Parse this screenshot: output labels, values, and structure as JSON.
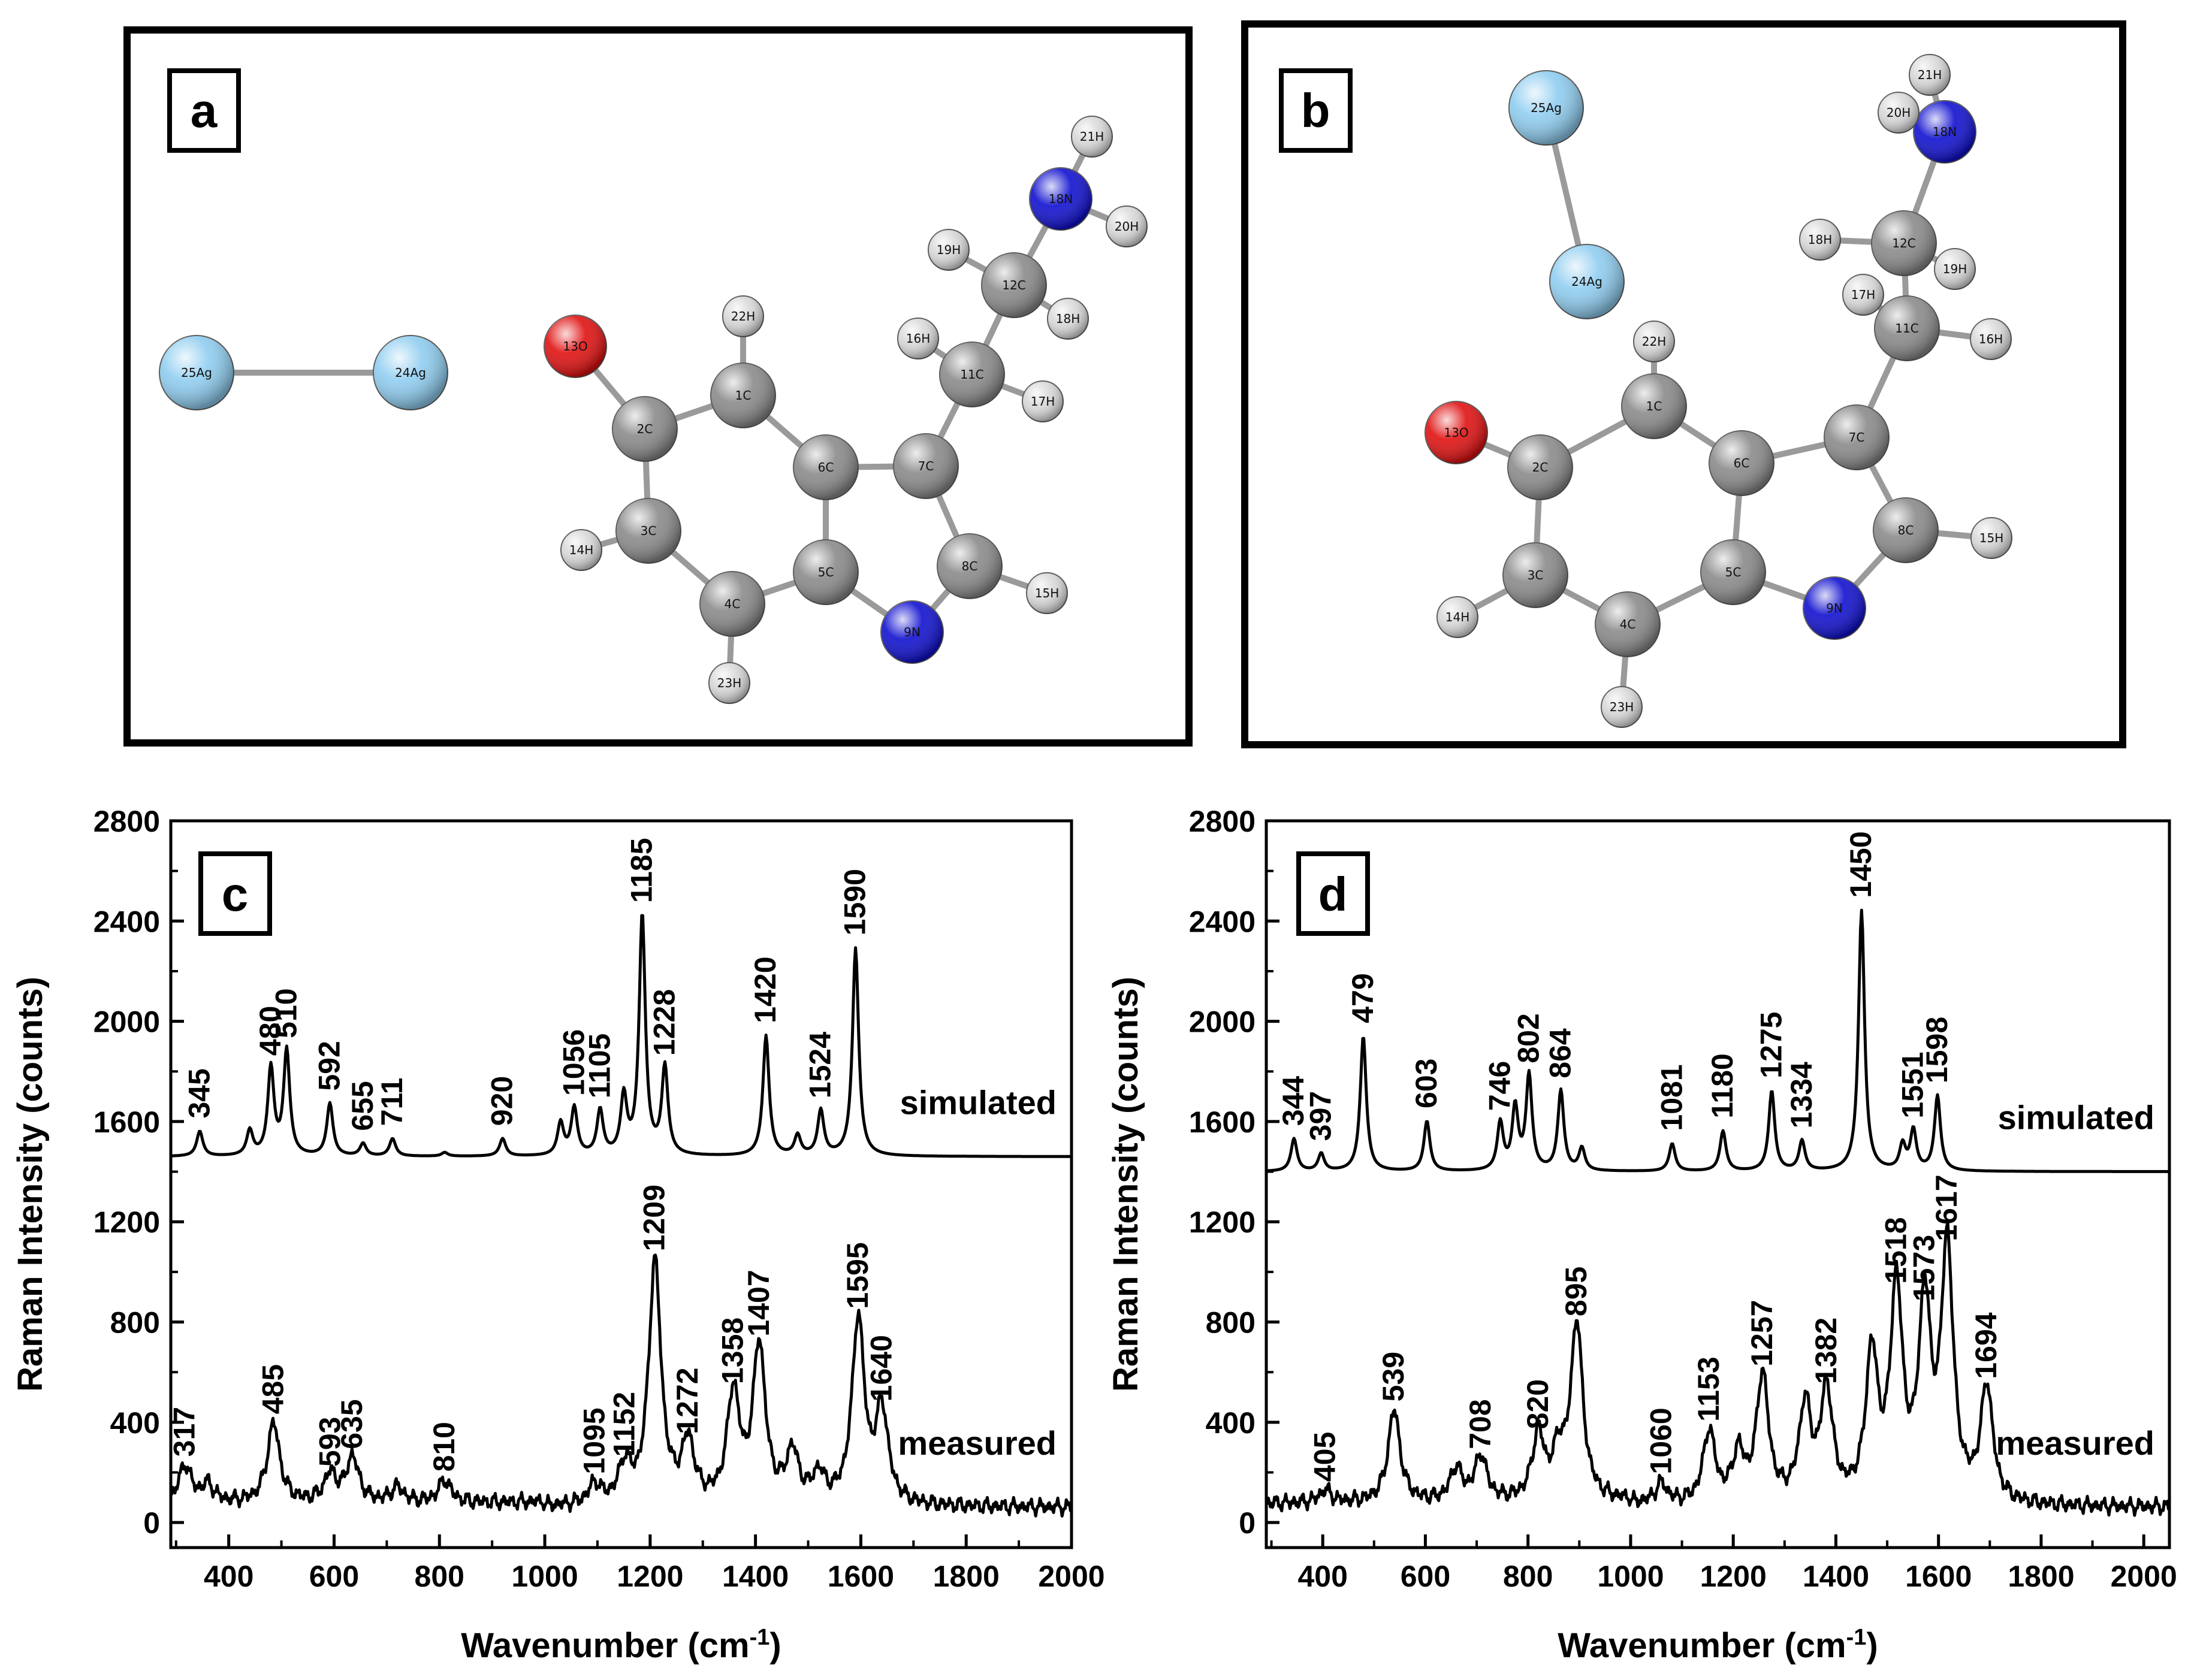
{
  "colors": {
    "background": "#ffffff",
    "ink": "#000000",
    "carbon": "#8a8a8a",
    "hydrogen": "#d8d8d8",
    "nitrogen": "#1010d0",
    "oxygen": "#e01010",
    "silver": "#8fcdf0",
    "bond": "#9a9a9a"
  },
  "panels": {
    "a": {
      "label": "a"
    },
    "b": {
      "label": "b"
    },
    "c": {
      "label": "c"
    },
    "d": {
      "label": "d"
    }
  },
  "molecules": {
    "a": {
      "atoms": [
        "25Ag",
        "24Ag",
        "13O",
        "2C",
        "1C",
        "22H",
        "6C",
        "7C",
        "3C",
        "14H",
        "4C",
        "5C",
        "23H",
        "9N",
        "8C",
        "15H",
        "11C",
        "16H",
        "17H",
        "12C",
        "19H",
        "18H",
        "18N",
        "21H",
        "20H"
      ]
    },
    "b": {
      "atoms": [
        "25Ag",
        "24Ag",
        "13O",
        "2C",
        "1C",
        "22H",
        "6C",
        "7C",
        "3C",
        "14H",
        "4C",
        "5C",
        "23H",
        "9N",
        "8C",
        "15H",
        "11C",
        "17H",
        "16H",
        "12C",
        "18H",
        "19H",
        "18N",
        "21H",
        "20H"
      ]
    }
  },
  "chart_data": [
    {
      "type": "line",
      "panel": "c",
      "xlabel": "Wavenumber (cm",
      "xlabel_sup": "-1",
      "xlabel_close": ")",
      "ylabel": "Raman Intensity (counts)",
      "xlim": [
        290,
        2000
      ],
      "ylim": [
        -100,
        2800
      ],
      "xticks": [
        400,
        600,
        800,
        1000,
        1200,
        1400,
        1600,
        1800,
        2000
      ],
      "yticks": [
        0,
        400,
        800,
        1200,
        1600,
        2000,
        2400,
        2800
      ],
      "series": [
        {
          "name": "simulated",
          "baseline": 1460,
          "peaks": [
            {
              "x": 345,
              "y": 1560,
              "label": "345"
            },
            {
              "x": 440,
              "y": 1560
            },
            {
              "x": 480,
              "y": 1810,
              "label": "480"
            },
            {
              "x": 510,
              "y": 1880,
              "label": "510"
            },
            {
              "x": 592,
              "y": 1670,
              "label": "592"
            },
            {
              "x": 655,
              "y": 1510,
              "label": "655"
            },
            {
              "x": 711,
              "y": 1530,
              "label": "711"
            },
            {
              "x": 810,
              "y": 1475
            },
            {
              "x": 920,
              "y": 1530,
              "label": "920"
            },
            {
              "x": 1030,
              "y": 1590
            },
            {
              "x": 1056,
              "y": 1650,
              "label": "1056"
            },
            {
              "x": 1105,
              "y": 1640,
              "label": "1105"
            },
            {
              "x": 1150,
              "y": 1690
            },
            {
              "x": 1185,
              "y": 2420,
              "label": "1185"
            },
            {
              "x": 1228,
              "y": 1810,
              "label": "1228"
            },
            {
              "x": 1420,
              "y": 1940,
              "label": "1420"
            },
            {
              "x": 1480,
              "y": 1540
            },
            {
              "x": 1524,
              "y": 1640,
              "label": "1524"
            },
            {
              "x": 1590,
              "y": 2290,
              "label": "1590"
            }
          ]
        },
        {
          "name": "measured",
          "baseline": 60,
          "peaks": [
            {
              "x": 317,
              "y": 210,
              "label": "317"
            },
            {
              "x": 360,
              "y": 130
            },
            {
              "x": 485,
              "y": 380,
              "label": "485"
            },
            {
              "x": 593,
              "y": 170,
              "label": "593"
            },
            {
              "x": 635,
              "y": 240,
              "label": "635"
            },
            {
              "x": 720,
              "y": 120
            },
            {
              "x": 810,
              "y": 150,
              "label": "810"
            },
            {
              "x": 1095,
              "y": 140,
              "label": "1095"
            },
            {
              "x": 1152,
              "y": 210,
              "label": "1152"
            },
            {
              "x": 1209,
              "y": 1030,
              "label": "1209"
            },
            {
              "x": 1272,
              "y": 300,
              "label": "1272"
            },
            {
              "x": 1358,
              "y": 500,
              "label": "1358"
            },
            {
              "x": 1407,
              "y": 690,
              "label": "1407"
            },
            {
              "x": 1470,
              "y": 260
            },
            {
              "x": 1520,
              "y": 170
            },
            {
              "x": 1595,
              "y": 800,
              "label": "1595"
            },
            {
              "x": 1640,
              "y": 430,
              "label": "1640"
            }
          ]
        }
      ],
      "annotations": [
        "simulated",
        "measured"
      ]
    },
    {
      "type": "line",
      "panel": "d",
      "xlabel": "Wavenumber (cm",
      "xlabel_sup": "-1",
      "xlabel_close": ")",
      "ylabel": "Raman Intensity (counts)",
      "xlim": [
        290,
        2050
      ],
      "ylim": [
        -100,
        2800
      ],
      "xticks": [
        400,
        600,
        800,
        1000,
        1200,
        1400,
        1600,
        1800,
        2000
      ],
      "yticks": [
        0,
        400,
        800,
        1200,
        1600,
        2000,
        2400,
        2800
      ],
      "series": [
        {
          "name": "simulated",
          "baseline": 1400,
          "peaks": [
            {
              "x": 344,
              "y": 1530,
              "label": "344"
            },
            {
              "x": 397,
              "y": 1470,
              "label": "397"
            },
            {
              "x": 479,
              "y": 1940,
              "label": "479"
            },
            {
              "x": 603,
              "y": 1600,
              "label": "603"
            },
            {
              "x": 746,
              "y": 1590,
              "label": "746"
            },
            {
              "x": 775,
              "y": 1650
            },
            {
              "x": 802,
              "y": 1780,
              "label": "802"
            },
            {
              "x": 864,
              "y": 1720,
              "label": "864"
            },
            {
              "x": 905,
              "y": 1490
            },
            {
              "x": 1081,
              "y": 1510,
              "label": "1081"
            },
            {
              "x": 1180,
              "y": 1560,
              "label": "1180"
            },
            {
              "x": 1275,
              "y": 1720,
              "label": "1275"
            },
            {
              "x": 1334,
              "y": 1520,
              "label": "1334"
            },
            {
              "x": 1450,
              "y": 2440,
              "label": "1450"
            },
            {
              "x": 1530,
              "y": 1500
            },
            {
              "x": 1551,
              "y": 1560,
              "label": "1551"
            },
            {
              "x": 1598,
              "y": 1700,
              "label": "1598"
            }
          ]
        },
        {
          "name": "measured",
          "baseline": 60,
          "peaks": [
            {
              "x": 405,
              "y": 110,
              "label": "405"
            },
            {
              "x": 539,
              "y": 430,
              "label": "539"
            },
            {
              "x": 660,
              "y": 190
            },
            {
              "x": 708,
              "y": 240,
              "label": "708"
            },
            {
              "x": 820,
              "y": 320,
              "label": "820"
            },
            {
              "x": 860,
              "y": 230
            },
            {
              "x": 895,
              "y": 770,
              "label": "895"
            },
            {
              "x": 1060,
              "y": 140,
              "label": "1060"
            },
            {
              "x": 1153,
              "y": 350,
              "label": "1153"
            },
            {
              "x": 1210,
              "y": 250
            },
            {
              "x": 1257,
              "y": 570,
              "label": "1257"
            },
            {
              "x": 1340,
              "y": 440
            },
            {
              "x": 1382,
              "y": 500,
              "label": "1382"
            },
            {
              "x": 1470,
              "y": 640
            },
            {
              "x": 1518,
              "y": 900,
              "label": "1518"
            },
            {
              "x": 1573,
              "y": 830,
              "label": "1573"
            },
            {
              "x": 1617,
              "y": 1070,
              "label": "1617"
            },
            {
              "x": 1694,
              "y": 520,
              "label": "1694"
            }
          ]
        }
      ],
      "annotations": [
        "simulated",
        "measured"
      ]
    }
  ]
}
